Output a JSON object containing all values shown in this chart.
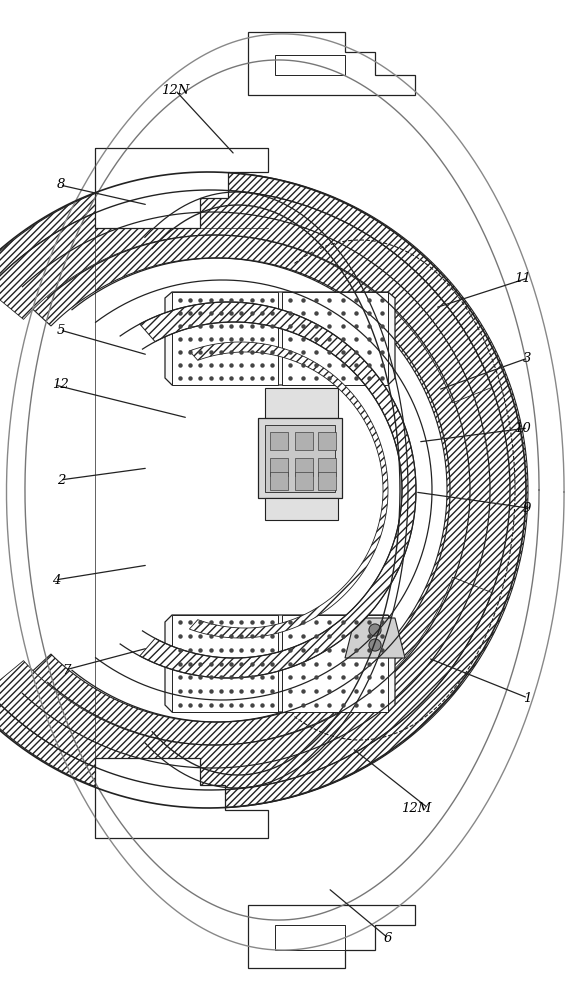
{
  "bg_color": "#ffffff",
  "line_color": "#222222",
  "fig_width": 5.84,
  "fig_height": 10.0,
  "dpi": 100,
  "labels_data": {
    "12N": [
      175,
      90,
      235,
      155
    ],
    "8": [
      60,
      185,
      148,
      205
    ],
    "12": [
      55,
      385,
      188,
      418
    ],
    "5": [
      60,
      330,
      148,
      355
    ],
    "2": [
      60,
      480,
      148,
      468
    ],
    "4": [
      55,
      580,
      148,
      565
    ],
    "7": [
      65,
      670,
      148,
      648
    ],
    "11": [
      528,
      278,
      435,
      308
    ],
    "3": [
      528,
      358,
      438,
      390
    ],
    "10": [
      528,
      428,
      418,
      442
    ],
    "9": [
      528,
      508,
      415,
      492
    ],
    "1": [
      528,
      698,
      428,
      658
    ],
    "12M": [
      428,
      808,
      352,
      748
    ],
    "6": [
      388,
      938,
      328,
      888
    ]
  }
}
